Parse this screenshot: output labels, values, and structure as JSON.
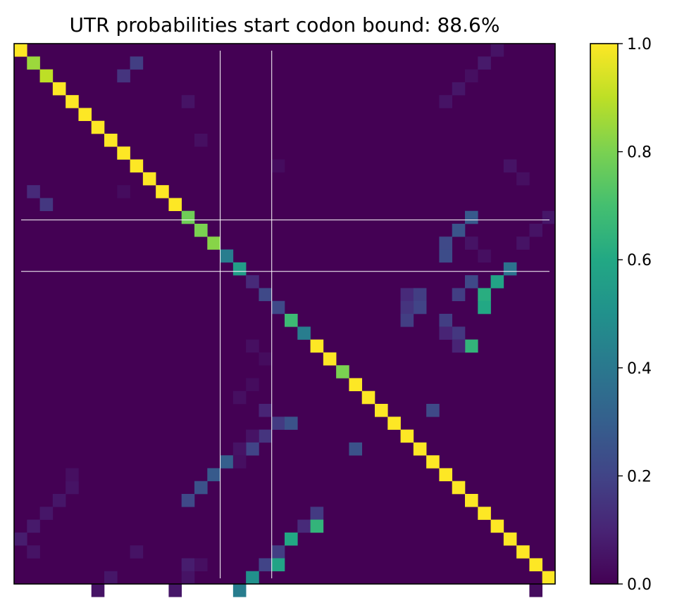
{
  "chart_data": {
    "type": "heatmap",
    "title": "UTR probabilities start codon bound: 88.6%",
    "n": 42,
    "colormap": "viridis",
    "colorbar": {
      "min": 0.0,
      "max": 1.0,
      "ticks": [
        "0.0",
        "0.2",
        "0.4",
        "0.6",
        "0.8",
        "1.0"
      ]
    },
    "xticks": [],
    "yticks": [],
    "start_codon_marker_indices": [
      16,
      20
    ],
    "background_value": 0.0,
    "cells": [
      [
        0,
        0,
        1.0
      ],
      [
        1,
        1,
        0.85
      ],
      [
        2,
        2,
        0.9
      ],
      [
        3,
        3,
        1.0
      ],
      [
        4,
        4,
        1.0
      ],
      [
        5,
        5,
        1.0
      ],
      [
        6,
        6,
        1.0
      ],
      [
        7,
        7,
        1.0
      ],
      [
        8,
        8,
        1.0
      ],
      [
        9,
        9,
        1.0
      ],
      [
        10,
        10,
        1.0
      ],
      [
        11,
        11,
        1.0
      ],
      [
        12,
        12,
        1.0
      ],
      [
        13,
        13,
        0.78
      ],
      [
        14,
        14,
        0.8
      ],
      [
        15,
        15,
        0.82
      ],
      [
        16,
        16,
        0.42
      ],
      [
        17,
        17,
        0.55
      ],
      [
        18,
        18,
        0.12
      ],
      [
        19,
        19,
        0.22
      ],
      [
        20,
        20,
        0.22
      ],
      [
        21,
        21,
        0.68
      ],
      [
        22,
        22,
        0.42
      ],
      [
        23,
        23,
        1.0
      ],
      [
        24,
        24,
        1.0
      ],
      [
        25,
        25,
        0.8
      ],
      [
        26,
        26,
        1.0
      ],
      [
        27,
        27,
        1.0
      ],
      [
        28,
        28,
        1.0
      ],
      [
        29,
        29,
        1.0
      ],
      [
        30,
        30,
        1.0
      ],
      [
        31,
        31,
        1.0
      ],
      [
        32,
        32,
        1.0
      ],
      [
        33,
        33,
        1.0
      ],
      [
        34,
        34,
        1.0
      ],
      [
        35,
        35,
        1.0
      ],
      [
        36,
        36,
        1.0
      ],
      [
        37,
        37,
        1.0
      ],
      [
        38,
        38,
        1.0
      ],
      [
        39,
        39,
        1.0
      ],
      [
        40,
        40,
        1.0
      ],
      [
        41,
        41,
        1.0
      ],
      [
        1,
        9,
        0.18
      ],
      [
        2,
        8,
        0.15
      ],
      [
        11,
        1,
        0.12
      ],
      [
        12,
        2,
        0.16
      ],
      [
        15,
        33,
        0.22
      ],
      [
        14,
        34,
        0.26
      ],
      [
        13,
        35,
        0.28
      ],
      [
        16,
        33,
        0.23
      ],
      [
        17,
        38,
        0.38
      ],
      [
        18,
        35,
        0.22
      ],
      [
        18,
        37,
        0.58
      ],
      [
        19,
        36,
        0.62
      ],
      [
        19,
        34,
        0.18
      ],
      [
        20,
        36,
        0.6
      ],
      [
        21,
        33,
        0.18
      ],
      [
        22,
        34,
        0.16
      ],
      [
        23,
        35,
        0.65
      ],
      [
        19,
        30,
        0.12
      ],
      [
        19,
        31,
        0.18
      ],
      [
        20,
        31,
        0.2
      ],
      [
        20,
        30,
        0.15
      ],
      [
        21,
        30,
        0.18
      ],
      [
        23,
        34,
        0.1
      ],
      [
        22,
        33,
        0.1
      ],
      [
        30,
        19,
        0.15
      ],
      [
        29,
        20,
        0.17
      ],
      [
        29,
        21,
        0.25
      ],
      [
        28,
        19,
        0.1
      ],
      [
        30,
        18,
        0.05
      ],
      [
        31,
        18,
        0.2
      ],
      [
        32,
        16,
        0.3
      ],
      [
        33,
        15,
        0.28
      ],
      [
        34,
        14,
        0.25
      ],
      [
        35,
        13,
        0.22
      ],
      [
        36,
        23,
        0.17
      ],
      [
        37,
        22,
        0.12
      ],
      [
        37,
        23,
        0.65
      ],
      [
        39,
        20,
        0.18
      ],
      [
        38,
        21,
        0.6
      ],
      [
        40,
        19,
        0.2
      ],
      [
        40,
        20,
        0.58
      ],
      [
        41,
        18,
        0.5
      ],
      [
        42,
        17,
        0.42
      ],
      [
        31,
        26,
        0.25
      ],
      [
        28,
        32,
        0.22
      ],
      [
        0,
        37,
        0.05
      ],
      [
        1,
        36,
        0.07
      ],
      [
        2,
        35,
        0.04
      ],
      [
        3,
        34,
        0.06
      ],
      [
        4,
        33,
        0.05
      ],
      [
        9,
        38,
        0.05
      ],
      [
        10,
        39,
        0.04
      ],
      [
        14,
        40,
        0.05
      ],
      [
        15,
        39,
        0.05
      ],
      [
        13,
        41,
        0.06
      ],
      [
        7,
        14,
        0.04
      ],
      [
        9,
        20,
        0.03
      ],
      [
        4,
        13,
        0.05
      ],
      [
        11,
        8,
        0.03
      ],
      [
        36,
        2,
        0.06
      ],
      [
        37,
        1,
        0.07
      ],
      [
        38,
        0,
        0.08
      ],
      [
        39,
        1,
        0.05
      ],
      [
        35,
        3,
        0.06
      ],
      [
        34,
        4,
        0.05
      ],
      [
        40,
        13,
        0.08
      ],
      [
        41,
        7,
        0.06
      ],
      [
        41,
        13,
        0.05
      ],
      [
        42,
        12,
        0.06
      ],
      [
        42,
        6,
        0.05
      ],
      [
        39,
        9,
        0.05
      ],
      [
        40,
        14,
        0.04
      ],
      [
        33,
        4,
        0.04
      ],
      [
        31,
        17,
        0.05
      ],
      [
        32,
        17,
        0.04
      ],
      [
        27,
        17,
        0.04
      ],
      [
        26,
        18,
        0.03
      ],
      [
        42,
        40,
        0.03
      ],
      [
        23,
        18,
        0.04
      ],
      [
        24,
        19,
        0.03
      ],
      [
        15,
        35,
        0.05
      ],
      [
        16,
        36,
        0.04
      ]
    ]
  }
}
